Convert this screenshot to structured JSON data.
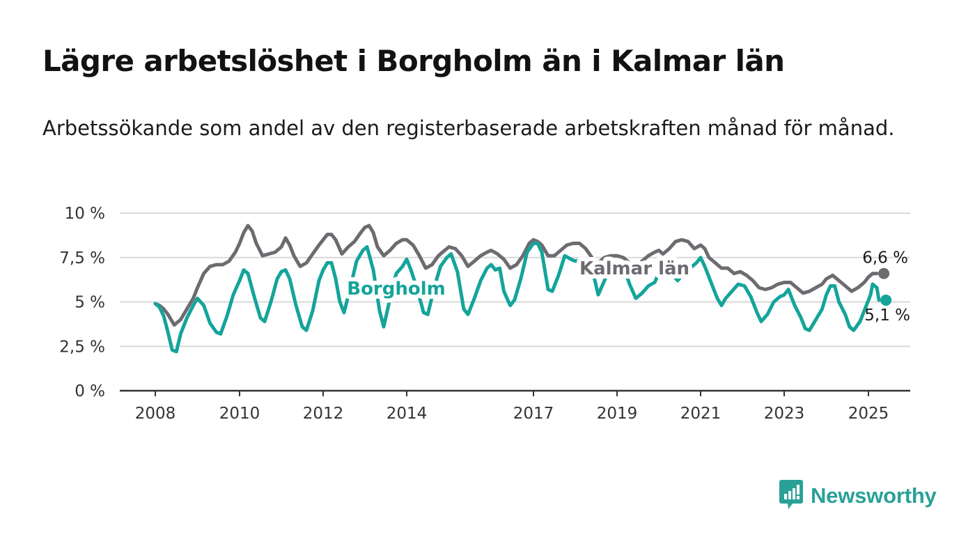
{
  "header": {
    "title": "Lägre arbetslöshet i Borgholm än i Kalmar län",
    "subtitle": "Arbetssökande som andel av den registerbaserade arbetskraften månad för månad."
  },
  "brand": {
    "name": "Newsworthy",
    "icon": "newsworthy-logo-icon"
  },
  "colors": {
    "borgholm": "#14a49a",
    "kalmar": "#6e6b70",
    "grid": "#d9d9d9",
    "axis": "#333333"
  },
  "chart_data": {
    "type": "line",
    "title": "Lägre arbetslöshet i Borgholm än i Kalmar län",
    "subtitle": "Arbetssökande som andel av den registerbaserade arbetskraften månad för månad.",
    "xlabel": "",
    "ylabel": "",
    "ylim": [
      0,
      10
    ],
    "xlim": [
      2008,
      2026
    ],
    "grid": true,
    "x_ticks": [
      {
        "value": 2008,
        "label": "2008"
      },
      {
        "value": 2010,
        "label": "2010"
      },
      {
        "value": 2012,
        "label": "2012"
      },
      {
        "value": 2014,
        "label": "2014"
      },
      {
        "value": 2017,
        "label": "2017"
      },
      {
        "value": 2019,
        "label": "2019"
      },
      {
        "value": 2021,
        "label": "2021"
      },
      {
        "value": 2023,
        "label": "2023"
      },
      {
        "value": 2025,
        "label": "2025"
      }
    ],
    "y_ticks": [
      {
        "value": 0,
        "label": "0 %"
      },
      {
        "value": 2.5,
        "label": "2,5 %"
      },
      {
        "value": 5,
        "label": "5 %"
      },
      {
        "value": 7.5,
        "label": "7,5 %"
      },
      {
        "value": 10,
        "label": "10 %"
      }
    ],
    "series": [
      {
        "name": "Kalmar län",
        "color": "#6e6b70",
        "label_text": "Kalmar län",
        "end_label": "6,6 %",
        "points": [
          [
            2008.0,
            4.9
          ],
          [
            2008.1,
            4.8
          ],
          [
            2008.2,
            4.6
          ],
          [
            2008.3,
            4.3
          ],
          [
            2008.45,
            3.7
          ],
          [
            2008.6,
            4.0
          ],
          [
            2008.75,
            4.6
          ],
          [
            2008.9,
            5.2
          ],
          [
            2009.0,
            5.8
          ],
          [
            2009.15,
            6.6
          ],
          [
            2009.3,
            7.0
          ],
          [
            2009.45,
            7.1
          ],
          [
            2009.6,
            7.1
          ],
          [
            2009.75,
            7.3
          ],
          [
            2009.9,
            7.8
          ],
          [
            2010.0,
            8.3
          ],
          [
            2010.1,
            8.9
          ],
          [
            2010.2,
            9.3
          ],
          [
            2010.3,
            9.0
          ],
          [
            2010.4,
            8.3
          ],
          [
            2010.55,
            7.6
          ],
          [
            2010.7,
            7.7
          ],
          [
            2010.85,
            7.8
          ],
          [
            2011.0,
            8.1
          ],
          [
            2011.1,
            8.6
          ],
          [
            2011.2,
            8.2
          ],
          [
            2011.3,
            7.6
          ],
          [
            2011.45,
            7.0
          ],
          [
            2011.6,
            7.2
          ],
          [
            2011.75,
            7.7
          ],
          [
            2011.9,
            8.2
          ],
          [
            2012.0,
            8.5
          ],
          [
            2012.1,
            8.8
          ],
          [
            2012.2,
            8.8
          ],
          [
            2012.3,
            8.5
          ],
          [
            2012.45,
            7.7
          ],
          [
            2012.6,
            8.1
          ],
          [
            2012.75,
            8.4
          ],
          [
            2012.9,
            8.9
          ],
          [
            2013.0,
            9.2
          ],
          [
            2013.1,
            9.3
          ],
          [
            2013.2,
            8.9
          ],
          [
            2013.3,
            8.1
          ],
          [
            2013.45,
            7.6
          ],
          [
            2013.6,
            7.9
          ],
          [
            2013.75,
            8.3
          ],
          [
            2013.9,
            8.5
          ],
          [
            2014.0,
            8.5
          ],
          [
            2014.15,
            8.2
          ],
          [
            2014.3,
            7.6
          ],
          [
            2014.45,
            6.9
          ],
          [
            2014.6,
            7.1
          ],
          [
            2014.75,
            7.6
          ],
          [
            2014.9,
            7.9
          ],
          [
            2015.0,
            8.1
          ],
          [
            2015.15,
            8.0
          ],
          [
            2015.3,
            7.6
          ],
          [
            2015.45,
            7.0
          ],
          [
            2015.6,
            7.3
          ],
          [
            2015.75,
            7.6
          ],
          [
            2015.9,
            7.8
          ],
          [
            2016.0,
            7.9
          ],
          [
            2016.15,
            7.7
          ],
          [
            2016.3,
            7.4
          ],
          [
            2016.45,
            6.9
          ],
          [
            2016.6,
            7.1
          ],
          [
            2016.75,
            7.6
          ],
          [
            2016.9,
            8.3
          ],
          [
            2017.0,
            8.5
          ],
          [
            2017.1,
            8.4
          ],
          [
            2017.2,
            8.2
          ],
          [
            2017.35,
            7.6
          ],
          [
            2017.5,
            7.6
          ],
          [
            2017.65,
            7.9
          ],
          [
            2017.8,
            8.2
          ],
          [
            2017.95,
            8.3
          ],
          [
            2018.1,
            8.3
          ],
          [
            2018.25,
            8.0
          ],
          [
            2018.4,
            7.5
          ],
          [
            2018.55,
            7.2
          ],
          [
            2018.7,
            7.5
          ],
          [
            2018.85,
            7.6
          ],
          [
            2019.0,
            7.6
          ],
          [
            2019.15,
            7.5
          ],
          [
            2019.3,
            7.2
          ],
          [
            2019.45,
            7.1
          ],
          [
            2019.6,
            7.3
          ],
          [
            2019.75,
            7.6
          ],
          [
            2019.9,
            7.8
          ],
          [
            2020.0,
            7.9
          ],
          [
            2020.1,
            7.7
          ],
          [
            2020.25,
            8.0
          ],
          [
            2020.4,
            8.4
          ],
          [
            2020.55,
            8.5
          ],
          [
            2020.7,
            8.4
          ],
          [
            2020.85,
            8.0
          ],
          [
            2021.0,
            8.2
          ],
          [
            2021.1,
            8.0
          ],
          [
            2021.2,
            7.5
          ],
          [
            2021.35,
            7.2
          ],
          [
            2021.5,
            6.9
          ],
          [
            2021.65,
            6.9
          ],
          [
            2021.8,
            6.6
          ],
          [
            2021.95,
            6.7
          ],
          [
            2022.1,
            6.5
          ],
          [
            2022.25,
            6.2
          ],
          [
            2022.4,
            5.8
          ],
          [
            2022.55,
            5.7
          ],
          [
            2022.7,
            5.8
          ],
          [
            2022.85,
            6.0
          ],
          [
            2023.0,
            6.1
          ],
          [
            2023.15,
            6.1
          ],
          [
            2023.3,
            5.8
          ],
          [
            2023.45,
            5.5
          ],
          [
            2023.6,
            5.6
          ],
          [
            2023.75,
            5.8
          ],
          [
            2023.9,
            6.0
          ],
          [
            2024.0,
            6.3
          ],
          [
            2024.15,
            6.5
          ],
          [
            2024.3,
            6.2
          ],
          [
            2024.45,
            5.9
          ],
          [
            2024.6,
            5.6
          ],
          [
            2024.75,
            5.8
          ],
          [
            2024.9,
            6.1
          ],
          [
            2025.0,
            6.4
          ],
          [
            2025.1,
            6.6
          ],
          [
            2025.2,
            6.6
          ]
        ]
      },
      {
        "name": "Borgholm",
        "color": "#14a49a",
        "label_text": "Borgholm",
        "end_label": "5,1 %",
        "points": [
          [
            2008.0,
            4.9
          ],
          [
            2008.1,
            4.7
          ],
          [
            2008.2,
            4.2
          ],
          [
            2008.3,
            3.3
          ],
          [
            2008.4,
            2.3
          ],
          [
            2008.5,
            2.2
          ],
          [
            2008.6,
            3.2
          ],
          [
            2008.75,
            4.1
          ],
          [
            2008.9,
            4.8
          ],
          [
            2009.0,
            5.2
          ],
          [
            2009.15,
            4.8
          ],
          [
            2009.3,
            3.8
          ],
          [
            2009.45,
            3.3
          ],
          [
            2009.55,
            3.2
          ],
          [
            2009.7,
            4.2
          ],
          [
            2009.85,
            5.4
          ],
          [
            2010.0,
            6.2
          ],
          [
            2010.1,
            6.8
          ],
          [
            2010.2,
            6.6
          ],
          [
            2010.35,
            5.3
          ],
          [
            2010.5,
            4.1
          ],
          [
            2010.6,
            3.9
          ],
          [
            2010.75,
            5.0
          ],
          [
            2010.9,
            6.3
          ],
          [
            2011.0,
            6.7
          ],
          [
            2011.1,
            6.8
          ],
          [
            2011.2,
            6.3
          ],
          [
            2011.35,
            4.8
          ],
          [
            2011.5,
            3.6
          ],
          [
            2011.6,
            3.4
          ],
          [
            2011.75,
            4.5
          ],
          [
            2011.9,
            6.2
          ],
          [
            2012.0,
            6.8
          ],
          [
            2012.1,
            7.2
          ],
          [
            2012.2,
            7.2
          ],
          [
            2012.3,
            6.3
          ],
          [
            2012.4,
            5.0
          ],
          [
            2012.5,
            4.4
          ],
          [
            2012.65,
            5.8
          ],
          [
            2012.8,
            7.3
          ],
          [
            2012.95,
            7.9
          ],
          [
            2013.05,
            8.1
          ],
          [
            2013.2,
            6.8
          ],
          [
            2013.35,
            4.5
          ],
          [
            2013.45,
            3.6
          ],
          [
            2013.6,
            5.2
          ],
          [
            2013.75,
            6.6
          ],
          [
            2013.9,
            7.0
          ],
          [
            2014.0,
            7.4
          ],
          [
            2014.1,
            6.8
          ],
          [
            2014.25,
            5.7
          ],
          [
            2014.4,
            4.4
          ],
          [
            2014.5,
            4.3
          ],
          [
            2014.65,
            5.8
          ],
          [
            2014.8,
            7.0
          ],
          [
            2014.95,
            7.5
          ],
          [
            2015.05,
            7.7
          ],
          [
            2015.2,
            6.7
          ],
          [
            2015.35,
            4.6
          ],
          [
            2015.45,
            4.3
          ],
          [
            2015.6,
            5.2
          ],
          [
            2015.75,
            6.2
          ],
          [
            2015.9,
            6.9
          ],
          [
            2016.0,
            7.1
          ],
          [
            2016.1,
            6.8
          ],
          [
            2016.2,
            6.9
          ],
          [
            2016.3,
            5.6
          ],
          [
            2016.45,
            4.8
          ],
          [
            2016.55,
            5.1
          ],
          [
            2016.7,
            6.3
          ],
          [
            2016.85,
            7.8
          ],
          [
            2017.0,
            8.3
          ],
          [
            2017.1,
            8.3
          ],
          [
            2017.2,
            7.8
          ],
          [
            2017.35,
            5.7
          ],
          [
            2017.45,
            5.6
          ],
          [
            2017.6,
            6.5
          ],
          [
            2017.75,
            7.6
          ],
          [
            2017.9,
            7.4
          ],
          [
            2018.0,
            7.3
          ],
          [
            2018.15,
            7.4
          ],
          [
            2018.3,
            7.2
          ],
          [
            2018.45,
            6.4
          ],
          [
            2018.55,
            5.4
          ],
          [
            2018.7,
            6.2
          ],
          [
            2018.85,
            7.1
          ],
          [
            2019.0,
            7.2
          ],
          [
            2019.15,
            7.0
          ],
          [
            2019.3,
            6.0
          ],
          [
            2019.45,
            5.2
          ],
          [
            2019.6,
            5.5
          ],
          [
            2019.75,
            5.9
          ],
          [
            2019.9,
            6.1
          ],
          [
            2020.0,
            6.6
          ],
          [
            2020.15,
            7.0
          ],
          [
            2020.3,
            6.6
          ],
          [
            2020.45,
            6.2
          ],
          [
            2020.6,
            6.6
          ],
          [
            2020.75,
            6.9
          ],
          [
            2020.9,
            7.2
          ],
          [
            2021.0,
            7.5
          ],
          [
            2021.1,
            7.0
          ],
          [
            2021.25,
            6.1
          ],
          [
            2021.4,
            5.2
          ],
          [
            2021.5,
            4.8
          ],
          [
            2021.6,
            5.2
          ],
          [
            2021.75,
            5.6
          ],
          [
            2021.9,
            6.0
          ],
          [
            2022.05,
            5.9
          ],
          [
            2022.2,
            5.3
          ],
          [
            2022.35,
            4.4
          ],
          [
            2022.45,
            3.9
          ],
          [
            2022.6,
            4.3
          ],
          [
            2022.75,
            5.0
          ],
          [
            2022.9,
            5.3
          ],
          [
            2023.0,
            5.4
          ],
          [
            2023.1,
            5.7
          ],
          [
            2023.25,
            4.8
          ],
          [
            2023.4,
            4.1
          ],
          [
            2023.5,
            3.5
          ],
          [
            2023.6,
            3.4
          ],
          [
            2023.75,
            4.0
          ],
          [
            2023.9,
            4.6
          ],
          [
            2024.0,
            5.4
          ],
          [
            2024.1,
            5.9
          ],
          [
            2024.2,
            5.9
          ],
          [
            2024.3,
            5.0
          ],
          [
            2024.45,
            4.3
          ],
          [
            2024.55,
            3.6
          ],
          [
            2024.65,
            3.4
          ],
          [
            2024.8,
            3.9
          ],
          [
            2024.95,
            4.8
          ],
          [
            2025.05,
            5.4
          ],
          [
            2025.1,
            6.0
          ],
          [
            2025.2,
            5.8
          ],
          [
            2025.25,
            5.1
          ]
        ]
      }
    ],
    "annotations": [
      {
        "text": "Kalmar län",
        "series": "Kalmar län"
      },
      {
        "text": "Borgholm",
        "series": "Borgholm"
      },
      {
        "text": "6,6 %",
        "series": "Kalmar län",
        "position": "end"
      },
      {
        "text": "5,1 %",
        "series": "Borgholm",
        "position": "end"
      }
    ]
  }
}
